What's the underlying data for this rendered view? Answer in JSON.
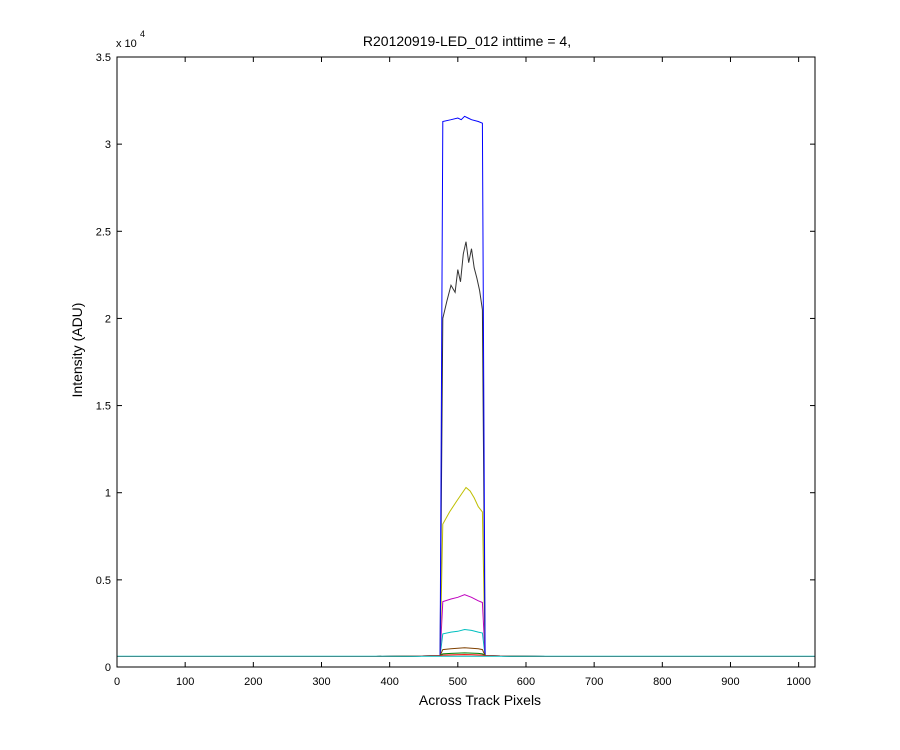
{
  "chart_data": {
    "type": "line",
    "title": "R20120919-LED_012 inttime = 4,",
    "xlabel": "Across Track Pixels",
    "ylabel": "Intensity (ADU)",
    "xlim": [
      0,
      1024
    ],
    "ylim": [
      0,
      35000
    ],
    "y_multiplier": {
      "base": "x 10",
      "exponent": "4"
    },
    "xticks": [
      0,
      100,
      200,
      300,
      400,
      500,
      600,
      700,
      800,
      900,
      1000
    ],
    "xtick_labels": [
      "0",
      "100",
      "200",
      "300",
      "400",
      "500",
      "600",
      "700",
      "800",
      "900",
      "1000"
    ],
    "yticks": [
      0,
      5000,
      10000,
      15000,
      20000,
      25000,
      30000,
      35000
    ],
    "ytick_labels": [
      "0",
      "0.5",
      "1",
      "1.5",
      "2",
      "2.5",
      "3",
      "3.5"
    ],
    "grid": false,
    "legend": "none",
    "series": [
      {
        "color": "#00bfbf",
        "x": [
          0,
          380,
          420,
          474,
          478,
          490,
          500,
          510,
          520,
          530,
          536,
          540,
          580,
          630,
          1024
        ],
        "y": [
          600,
          600,
          620,
          650,
          1900,
          2000,
          2050,
          2150,
          2100,
          2000,
          1950,
          650,
          620,
          600,
          600
        ]
      },
      {
        "color": "#bf00bf",
        "x": [
          0,
          380,
          420,
          474,
          478,
          490,
          500,
          510,
          520,
          530,
          536,
          540,
          580,
          630,
          1024
        ],
        "y": [
          600,
          600,
          620,
          650,
          3750,
          3900,
          4000,
          4150,
          4000,
          3800,
          3700,
          650,
          620,
          600,
          600
        ]
      },
      {
        "color": "#bfbf00",
        "x": [
          0,
          380,
          420,
          474,
          478,
          488,
          498,
          505,
          512,
          518,
          524,
          530,
          536,
          540,
          580,
          630,
          1024
        ],
        "y": [
          600,
          600,
          620,
          650,
          8200,
          8900,
          9500,
          9900,
          10300,
          10100,
          9700,
          9200,
          8900,
          650,
          620,
          600,
          600
        ]
      },
      {
        "color": "#333333",
        "x": [
          0,
          380,
          420,
          474,
          478,
          484,
          490,
          496,
          500,
          504,
          508,
          512,
          516,
          520,
          524,
          528,
          532,
          536,
          540,
          580,
          630,
          1024
        ],
        "y": [
          600,
          600,
          620,
          650,
          20000,
          21000,
          21900,
          21500,
          22800,
          22100,
          23700,
          24400,
          23200,
          24000,
          22900,
          22300,
          21600,
          20500,
          650,
          620,
          600,
          600
        ]
      },
      {
        "color": "#0000ff",
        "x": [
          0,
          380,
          420,
          474,
          478,
          490,
          500,
          505,
          510,
          515,
          520,
          530,
          536,
          540,
          580,
          630,
          1024
        ],
        "y": [
          600,
          600,
          620,
          650,
          31300,
          31400,
          31500,
          31400,
          31600,
          31500,
          31400,
          31300,
          31200,
          650,
          620,
          600,
          600
        ]
      },
      {
        "color": "#7f4000",
        "x": [
          0,
          380,
          420,
          474,
          478,
          490,
          500,
          510,
          520,
          530,
          536,
          540,
          580,
          630,
          1024
        ],
        "y": [
          600,
          600,
          620,
          650,
          1000,
          1050,
          1080,
          1100,
          1080,
          1050,
          1000,
          650,
          620,
          600,
          600
        ]
      },
      {
        "color": "#008000",
        "x": [
          0,
          380,
          420,
          474,
          478,
          490,
          500,
          510,
          520,
          530,
          536,
          540,
          580,
          630,
          1024
        ],
        "y": [
          600,
          600,
          620,
          650,
          750,
          780,
          800,
          810,
          800,
          780,
          750,
          650,
          620,
          600,
          600
        ]
      },
      {
        "color": "#ff0000",
        "x": [
          0,
          380,
          420,
          474,
          478,
          500,
          510,
          520,
          536,
          540,
          580,
          630,
          1024
        ],
        "y": [
          600,
          600,
          620,
          640,
          680,
          700,
          710,
          700,
          680,
          640,
          620,
          600,
          600
        ]
      },
      {
        "color": "#00bfbf",
        "x": [
          0,
          1024
        ],
        "y": [
          620,
          620
        ]
      }
    ]
  }
}
